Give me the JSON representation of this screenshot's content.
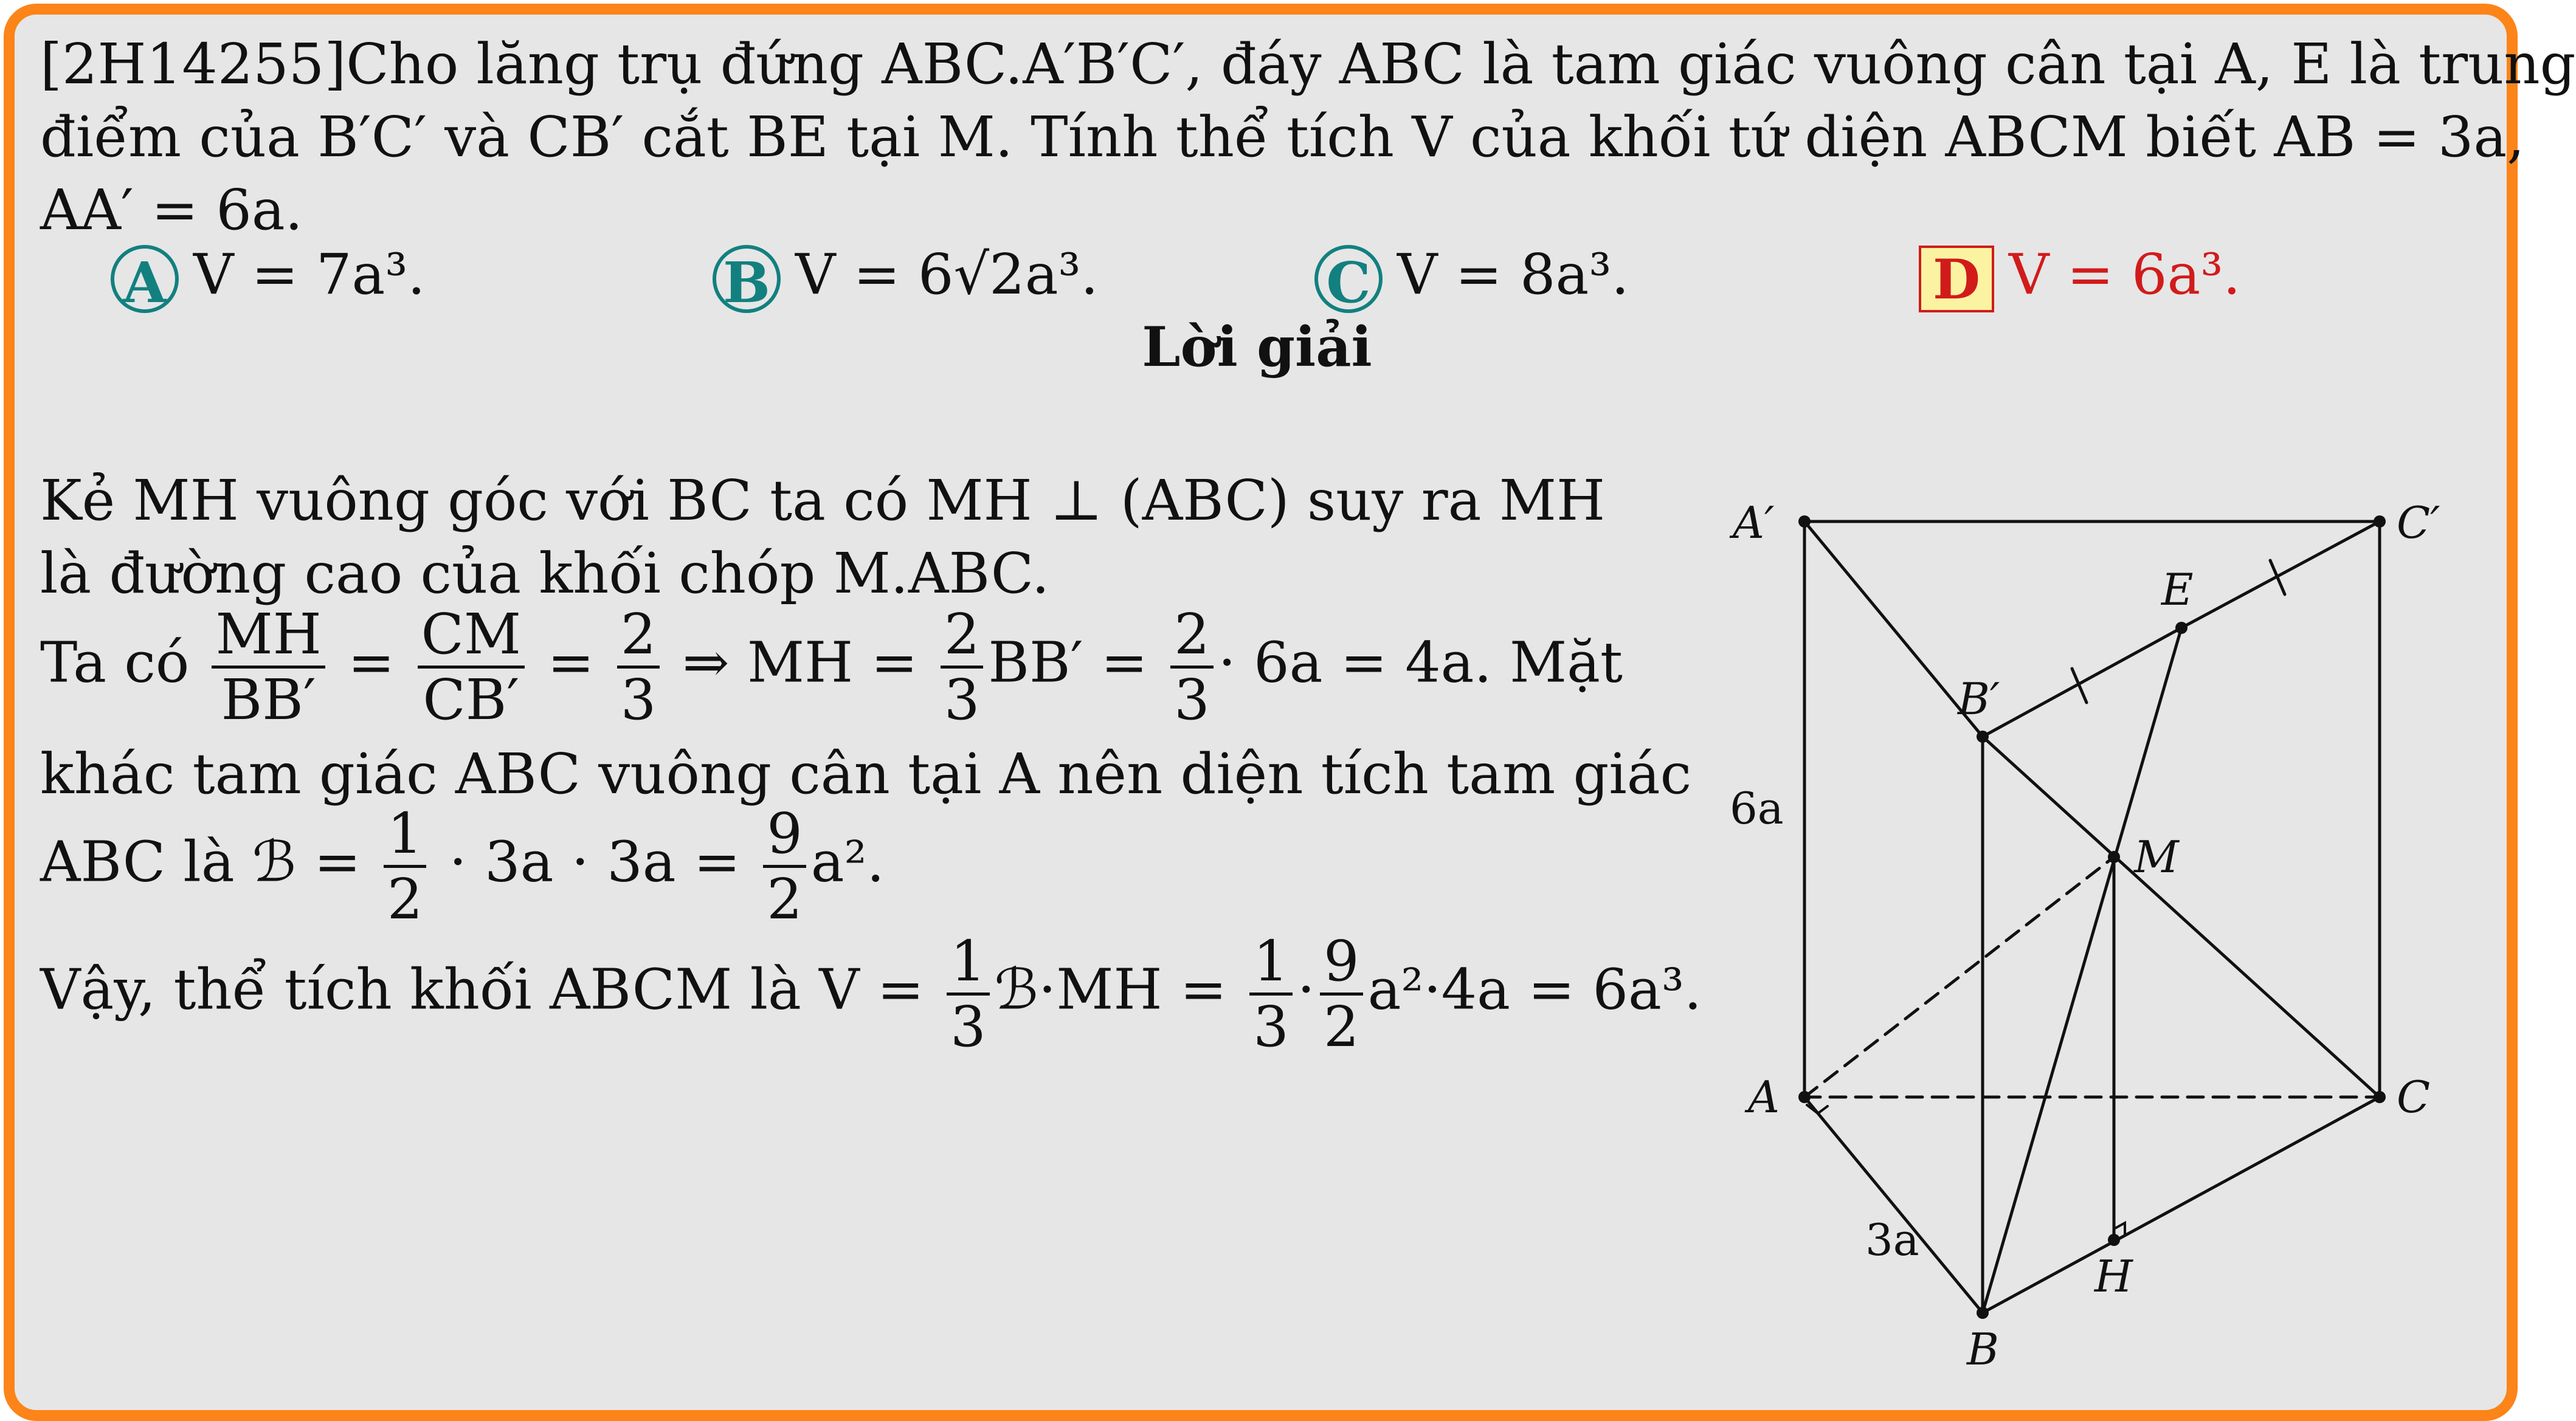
{
  "problem": {
    "line1": "[2H14255]Cho lăng trụ đứng ABC.A′B′C′, đáy ABC là tam giác vuông cân tại A, E là trung",
    "line2": "điểm của B′C′ và CB′ cắt BE tại M. Tính thể tích V của khối tứ diện ABCM biết AB = 3a,",
    "line3": "AA′ = 6a."
  },
  "choices": [
    {
      "label": "A",
      "text": "V = 7a³."
    },
    {
      "label": "B",
      "text": "V = 6√2a³."
    },
    {
      "label": "C",
      "text": "V = 8a³."
    },
    {
      "label": "D",
      "text": "V = 6a³.",
      "correct": true
    }
  ],
  "solution_title": "Lời giải",
  "solution": {
    "l1": "Kẻ MH vuông góc với BC ta có MH ⊥ (ABC) suy ra MH",
    "l2": "là đường cao của khối chóp M.ABC.",
    "l3a": "Ta có",
    "l3_f1_num": "MH",
    "l3_f1_den": "BB′",
    "l3_f2_num": "CM",
    "l3_f2_den": "CB′",
    "l3_f3_num": "2",
    "l3_f3_den": "3",
    "l3_mid": "⇒ MH =",
    "l3_f4_num": "2",
    "l3_f4_den": "3",
    "l3_mid2": "BB′ =",
    "l3_f5_num": "2",
    "l3_f5_den": "3",
    "l3_end": "· 6a = 4a. Mặt",
    "l4": "khác tam giác ABC vuông cân tại A nên diện tích tam giác",
    "l5a": "ABC là ℬ =",
    "l5_f1_num": "1",
    "l5_f1_den": "2",
    "l5_mid": "· 3a · 3a =",
    "l5_f2_num": "9",
    "l5_f2_den": "2",
    "l5_end": "a².",
    "l6a": "Vậy, thể tích khối ABCM là V =",
    "l6_f1_num": "1",
    "l6_f1_den": "3",
    "l6_mid": "ℬ·MH =",
    "l6_f2_num": "1",
    "l6_f2_den": "3",
    "l6_f3_num": "9",
    "l6_f3_den": "2",
    "l6_end": "a²·4a = 6a³."
  },
  "figure": {
    "labels": {
      "A_prime": "A′",
      "C_prime": "C′",
      "E": "E",
      "B_prime": "B′",
      "M": "M",
      "A": "A",
      "C": "C",
      "B": "B",
      "H": "H",
      "side_6a": "6a",
      "side_3a": "3a"
    }
  }
}
